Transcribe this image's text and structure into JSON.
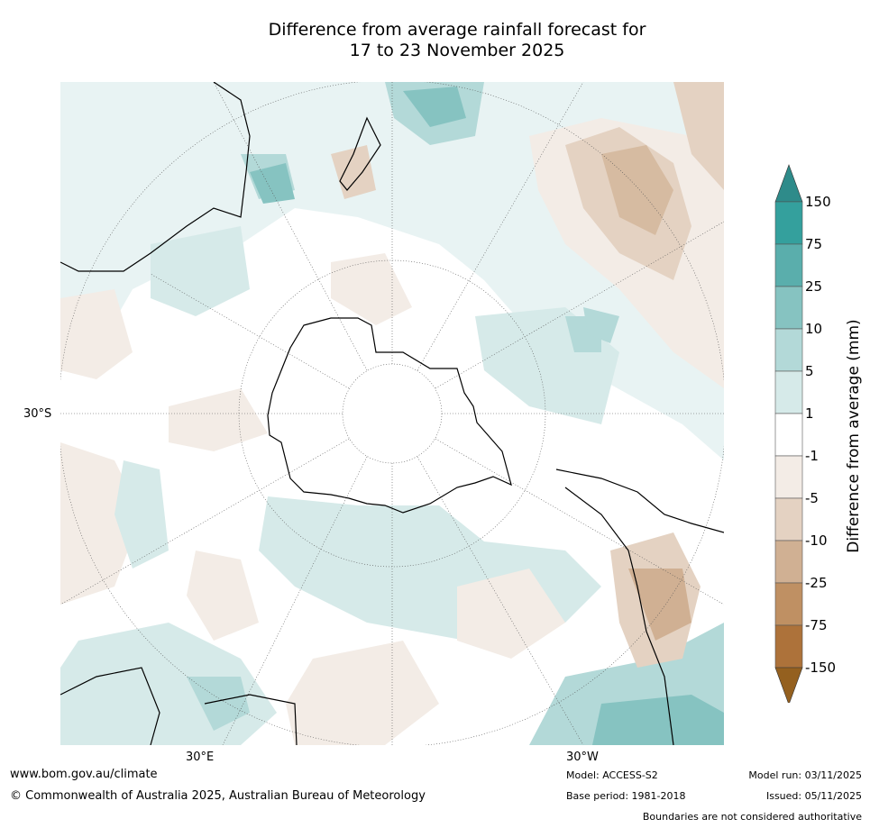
{
  "title": {
    "line1": "Difference from average rainfall forecast for",
    "line2": "17 to 23 November 2025"
  },
  "map": {
    "projection": "South polar stereographic",
    "lat_label": "30°S",
    "lon_labels": [
      "30°E",
      "30°W"
    ]
  },
  "colorbar": {
    "label": "Difference from average (mm)",
    "ticks": [
      "150",
      "75",
      "25",
      "10",
      "5",
      "1",
      "-1",
      "-5",
      "-10",
      "-25",
      "-75",
      "-150"
    ],
    "colors": [
      "#2e8b8a",
      "#34a09d",
      "#5aaeac",
      "#86c3c1",
      "#b3d9d8",
      "#d6eae9",
      "#ffffff",
      "#f3ece6",
      "#e4d2c2",
      "#d0b093",
      "#bf9063",
      "#ad723a",
      "#94601f"
    ]
  },
  "footer": {
    "website": "www.bom.gov.au/climate",
    "copyright": "© Commonwealth of Australia 2025, Australian Bureau of Meteorology",
    "model": "Model: ACCESS-S2",
    "base_period": "Base period: 1981-2018",
    "model_run": "Model run: 03/11/2025",
    "issued": "Issued: 05/11/2025",
    "disclaimer": "Boundaries are not considered authoritative"
  }
}
